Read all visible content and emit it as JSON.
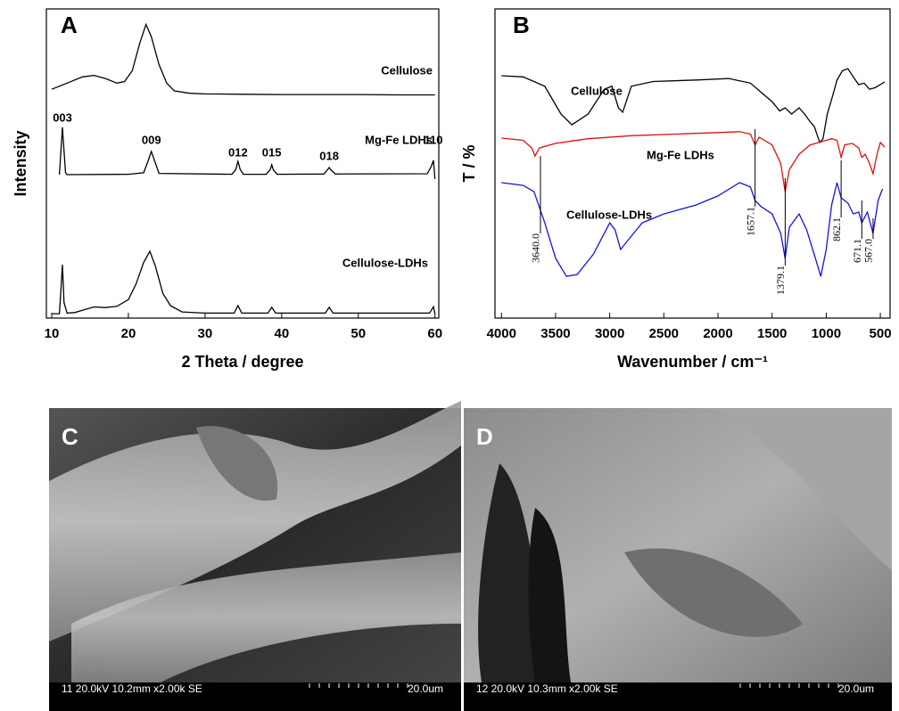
{
  "chart_data": [
    {
      "type": "line",
      "panel": "A",
      "xlabel": "2 Theta / degree",
      "ylabel": "Intensity",
      "xlim": [
        9.3,
        60.5
      ],
      "xticks": [
        10,
        20,
        30,
        40,
        50,
        60
      ],
      "ylim": [
        0,
        100
      ],
      "series": [
        {
          "name": "Cellulose",
          "color": "#000000",
          "x": [
            10,
            12,
            14,
            15.5,
            17,
            18.5,
            19.5,
            20.5,
            21.5,
            22.3,
            23,
            24,
            25,
            26,
            28,
            30,
            35,
            40,
            45,
            50,
            55,
            60
          ],
          "values": [
            74,
            76,
            78,
            78.5,
            77.5,
            76,
            76.5,
            80,
            89,
            95,
            91,
            82,
            76,
            73.5,
            72.7,
            72.5,
            72.4,
            72.3,
            72.3,
            72.3,
            72.2,
            72.2
          ]
        },
        {
          "name": "Mg-Fe LDHs",
          "color": "#000000",
          "x": [
            11,
            11.2,
            11.4,
            11.6,
            11.8,
            12,
            20,
            22,
            22.6,
            23,
            23.4,
            24,
            33.5,
            34,
            34.3,
            34.6,
            35,
            38,
            38.5,
            38.7,
            38.9,
            39.4,
            45.5,
            46,
            46.2,
            46.4,
            47,
            59,
            59.5,
            59.8,
            60
          ],
          "values": [
            46.4,
            54,
            61.7,
            54,
            47,
            46.4,
            46.5,
            47,
            51,
            53.9,
            51,
            46.8,
            46.5,
            48,
            50.7,
            48,
            46.5,
            46.5,
            48,
            49.6,
            48,
            46.5,
            46.6,
            48,
            48.7,
            48,
            46.6,
            46.7,
            49,
            51,
            45
          ]
        },
        {
          "name": "Cellulose-LDHs",
          "color": "#000000",
          "x": [
            10,
            11,
            11.2,
            11.4,
            11.6,
            12,
            13,
            14,
            15.5,
            17,
            18.5,
            20,
            21,
            22,
            22.8,
            23.5,
            24.5,
            25.5,
            27,
            30,
            33.8,
            34.3,
            34.8,
            38.2,
            38.7,
            39.2,
            45.7,
            46.2,
            46.7,
            59.3,
            59.8,
            60
          ],
          "values": [
            1.4,
            1.4,
            9,
            17.3,
            5,
            1.6,
            1.8,
            2.5,
            3.6,
            3.4,
            3.8,
            6,
            11,
            18,
            21.6,
            17,
            8,
            4,
            2,
            1.6,
            1.6,
            4,
            1.6,
            1.6,
            3.5,
            1.6,
            1.6,
            3.5,
            1.6,
            1.6,
            3.7,
            1.4
          ]
        }
      ],
      "annotations": [
        {
          "text": "003",
          "x": 11.4
        },
        {
          "text": "009",
          "x": 23
        },
        {
          "text": "012",
          "x": 34.3
        },
        {
          "text": "015",
          "x": 38.7
        },
        {
          "text": "018",
          "x": 46.2
        },
        {
          "text": "110",
          "x": 59.8
        }
      ]
    },
    {
      "type": "line",
      "panel": "B",
      "xlabel": "Wavenumber / cm⁻¹",
      "ylabel": "T / %",
      "xlim": [
        4060,
        410
      ],
      "xticks": [
        4000,
        3500,
        3000,
        2500,
        2000,
        1500,
        1000,
        500
      ],
      "ylim": [
        0,
        100
      ],
      "series": [
        {
          "name": "Cellulose",
          "color": "#000000",
          "x": [
            4000,
            3800,
            3600,
            3450,
            3350,
            3200,
            3050,
            2980,
            2920,
            2880,
            2800,
            2600,
            2200,
            1900,
            1700,
            1600,
            1500,
            1430,
            1380,
            1320,
            1250,
            1200,
            1160,
            1110,
            1060,
            1030,
            990,
            940,
            900,
            850,
            800,
            750,
            700,
            650,
            600,
            550,
            500,
            460
          ],
          "values": [
            78.4,
            78,
            75,
            66,
            62.5,
            66,
            74,
            75,
            68,
            66.6,
            75,
            76.5,
            77,
            77.5,
            76,
            73,
            70,
            67,
            68,
            66,
            68,
            66,
            64,
            62,
            56.8,
            58,
            66,
            72,
            77,
            80,
            80.7,
            78,
            75.5,
            76,
            74,
            74.5,
            75.5,
            76.4
          ]
        },
        {
          "name": "Mg-Fe LDHs",
          "color": "#e01010",
          "x": [
            4000,
            3800,
            3720,
            3690,
            3650,
            3500,
            3200,
            2800,
            2400,
            2000,
            1800,
            1700,
            1657,
            1620,
            1500,
            1420,
            1380,
            1340,
            1250,
            1150,
            1050,
            950,
            900,
            862,
            830,
            760,
            700,
            671,
            640,
            600,
            567,
            530,
            500,
            460
          ],
          "values": [
            58.2,
            57.5,
            55,
            52.4,
            55,
            56.5,
            58,
            59,
            59.5,
            60,
            60.3,
            59.5,
            56,
            58.5,
            56,
            50,
            40.9,
            48,
            53,
            56,
            57,
            58,
            57.5,
            52,
            56,
            56.5,
            55,
            52,
            53,
            50,
            46.7,
            53,
            56.8,
            55.3
          ]
        },
        {
          "name": "Cellulose-LDHs",
          "color": "#1414e0",
          "x": [
            4000,
            3800,
            3700,
            3600,
            3500,
            3400,
            3300,
            3150,
            3000,
            2950,
            2900,
            2800,
            2700,
            2500,
            2200,
            2000,
            1800,
            1700,
            1657,
            1600,
            1500,
            1420,
            1380,
            1340,
            1250,
            1180,
            1100,
            1050,
            1000,
            950,
            900,
            862,
            800,
            750,
            700,
            671,
            620,
            567,
            520,
            480
          ],
          "values": [
            43.8,
            42.9,
            40.9,
            30.8,
            19.3,
            13.5,
            14.1,
            20.7,
            30.8,
            28.5,
            22.2,
            26.5,
            30.8,
            33.7,
            36.6,
            39.5,
            43.8,
            42.4,
            38,
            36,
            33.7,
            27.4,
            19.3,
            29.4,
            33.7,
            28.5,
            19.3,
            13.5,
            22.2,
            36.6,
            43.8,
            38.9,
            37.2,
            33.7,
            34.3,
            30.8,
            34.3,
            27.4,
            38,
            41.8
          ]
        }
      ],
      "markers": [
        {
          "value": 3640,
          "label": "3640.0"
        },
        {
          "value": 1657.1,
          "label": "1657.1"
        },
        {
          "value": 1379.1,
          "label": "1379.1"
        },
        {
          "value": 862.1,
          "label": "862.1"
        },
        {
          "value": 671.1,
          "label": "671.1"
        },
        {
          "value": 567,
          "label": "567.0"
        }
      ]
    }
  ],
  "images": [
    {
      "label": "C",
      "info": "11 20.0kV 10.2mm x2.00k SE",
      "scale": "20.0um"
    },
    {
      "label": "D",
      "info": "12 20.0kV 10.3mm x2.00k SE",
      "scale": "20.0um"
    }
  ]
}
